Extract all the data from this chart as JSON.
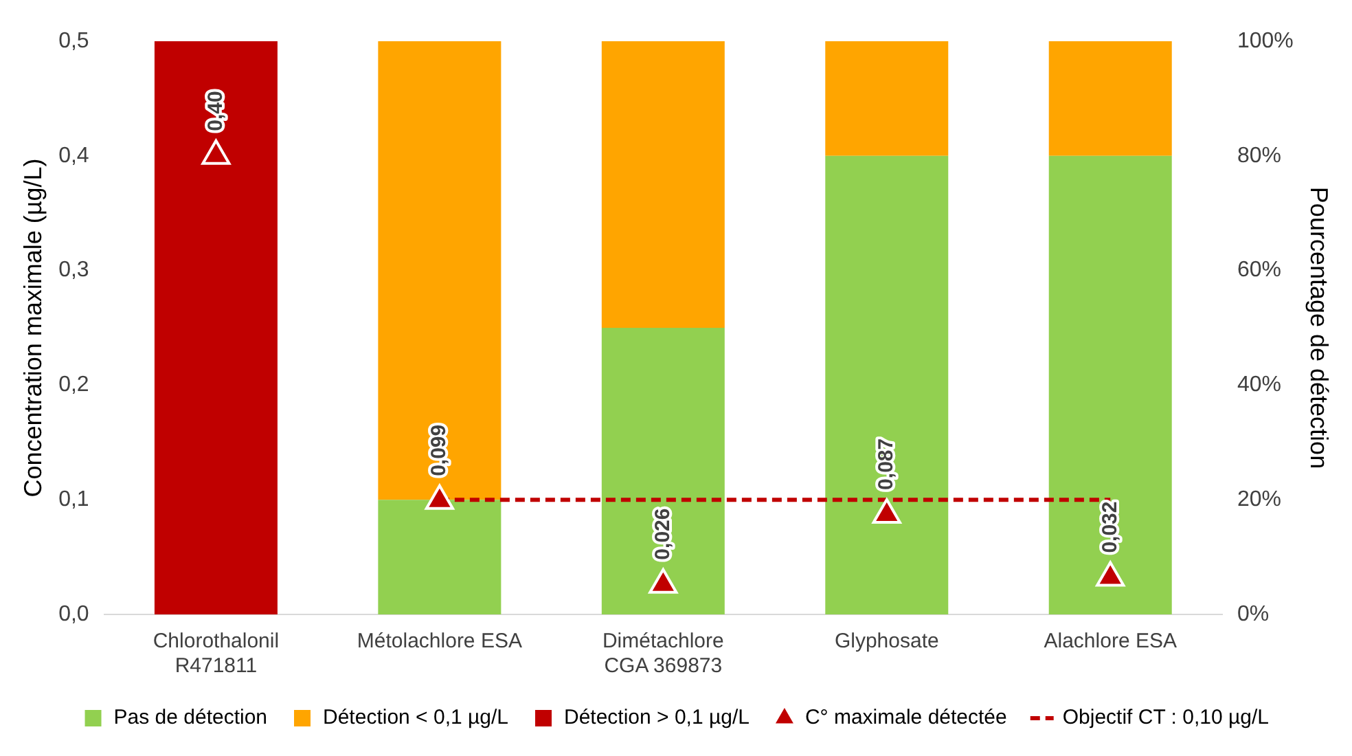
{
  "chart_data": {
    "type": "bar",
    "categories": [
      "Chlorothalonil\nR471811",
      "Métolachlore ESA",
      "Dimétachlore\nCGA 369873",
      "Glyphosate",
      "Alachlore ESA"
    ],
    "ylabel": "Concentration maximale (µg/L)",
    "y2label": "Pourcentage de détection",
    "ylim": [
      0,
      0.5
    ],
    "yticks": [
      {
        "value": 0,
        "label": "0,0"
      },
      {
        "value": 0.1,
        "label": "0,1"
      },
      {
        "value": 0.2,
        "label": "0,2"
      },
      {
        "value": 0.3,
        "label": "0,3"
      },
      {
        "value": 0.4,
        "label": "0,4"
      },
      {
        "value": 0.5,
        "label": "0,5"
      }
    ],
    "y2lim": [
      0,
      100
    ],
    "y2ticks": [
      {
        "value": 0,
        "label": "0%"
      },
      {
        "value": 20,
        "label": "20%"
      },
      {
        "value": 40,
        "label": "40%"
      },
      {
        "value": 60,
        "label": "60%"
      },
      {
        "value": 80,
        "label": "80%"
      },
      {
        "value": 100,
        "label": "100%"
      }
    ],
    "stacked": true,
    "grid": false,
    "legend": "bottom",
    "series": [
      {
        "name": "Pas de détection",
        "axis": "y2",
        "color": "#92d050",
        "values": [
          null,
          20,
          50,
          80,
          80
        ]
      },
      {
        "name": "Détection < 0,1 µg/L",
        "axis": "y2",
        "color": "#ffa500",
        "values": [
          null,
          80,
          50,
          20,
          20
        ]
      },
      {
        "name": "Détection > 0,1 µg/L",
        "axis": "y2",
        "color": "#c00000",
        "values": [
          100,
          null,
          null,
          null,
          null
        ]
      },
      {
        "name": "C° maximale détectée",
        "type": "scatter",
        "color": "#c00000",
        "marker": "triangle",
        "x": [
          "Chlorothalonil\nR471811",
          "Métolachlore ESA",
          "Dimétachlore\nCGA 369873",
          "Glyphosate",
          "Alachlore ESA"
        ],
        "values": [
          0.4,
          0.099,
          0.026,
          0.087,
          0.032
        ],
        "value_labels": [
          "0,40",
          "0,099",
          "0,026",
          "0,087",
          "0,032"
        ]
      },
      {
        "name": "Objectif CT : 0,10 µg/L",
        "type": "line",
        "color": "#c00000",
        "line_style": "dashed",
        "marker": "none",
        "values": [
          null,
          0.1,
          0.1,
          0.1,
          0.1
        ]
      }
    ]
  }
}
